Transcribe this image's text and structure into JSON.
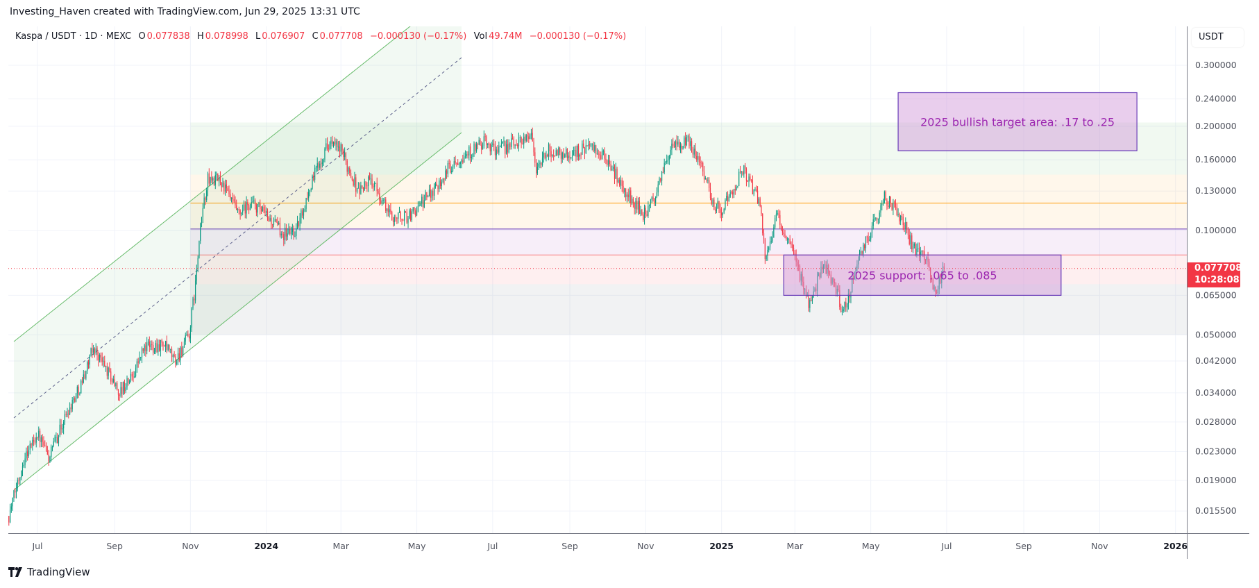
{
  "attribution": "Investing_Haven created with TradingView.com, Jun 29, 2025 13:31 UTC",
  "legend": {
    "symbol": "Kaspa / USDT · 1D · MEXC",
    "o_label": "O",
    "o": "0.077838",
    "h_label": "H",
    "h": "0.078998",
    "l_label": "L",
    "l": "0.076907",
    "c_label": "C",
    "c": "0.077708",
    "change": "−0.000130 (−0.17%)",
    "vol_label": "Vol",
    "vol": "49.74M",
    "vol_change": "−0.000130 (−0.17%)"
  },
  "price_axis": {
    "currency": "USDT"
  },
  "current_price": {
    "value": "0.077708",
    "countdown": "10:28:08"
  },
  "branding": "TradingView",
  "colors": {
    "up": "#089981",
    "down": "#f23645",
    "annotation_text": "#9c27b0",
    "annotation_border": "#673ab7"
  },
  "chart_data": {
    "type": "candlestick",
    "title": "Kaspa / USDT · 1D · MEXC",
    "scale": "log",
    "ylim": [
      0.0135,
      0.34
    ],
    "xlim": [
      "2023-06-05",
      "2026-02-20"
    ],
    "y_ticks": [
      "0.300000",
      "0.240000",
      "0.200000",
      "0.160000",
      "0.130000",
      "0.100000",
      "0.065000",
      "0.050000",
      "0.042000",
      "0.034000",
      "0.028000",
      "0.023000",
      "0.019000",
      "0.015500"
    ],
    "x_ticks": [
      {
        "label": "Jul",
        "date": "2023-07-01"
      },
      {
        "label": "Sep",
        "date": "2023-09-01"
      },
      {
        "label": "Nov",
        "date": "2023-11-01"
      },
      {
        "label": "2024",
        "date": "2024-01-01",
        "year": true
      },
      {
        "label": "Mar",
        "date": "2024-03-01"
      },
      {
        "label": "May",
        "date": "2024-05-01"
      },
      {
        "label": "Jul",
        "date": "2024-07-01"
      },
      {
        "label": "Sep",
        "date": "2024-09-01"
      },
      {
        "label": "Nov",
        "date": "2024-11-01"
      },
      {
        "label": "2025",
        "date": "2025-01-01",
        "year": true
      },
      {
        "label": "Mar",
        "date": "2025-03-01"
      },
      {
        "label": "May",
        "date": "2025-05-01"
      },
      {
        "label": "Jul",
        "date": "2025-07-01"
      },
      {
        "label": "Sep",
        "date": "2025-09-01"
      },
      {
        "label": "Nov",
        "date": "2025-11-01"
      },
      {
        "label": "2026",
        "date": "2026-01-01",
        "year": true
      }
    ],
    "key_closes": [
      [
        "2023-06-08",
        0.015
      ],
      [
        "2023-06-20",
        0.022
      ],
      [
        "2023-07-01",
        0.026
      ],
      [
        "2023-07-10",
        0.022
      ],
      [
        "2023-07-25",
        0.03
      ],
      [
        "2023-08-05",
        0.036
      ],
      [
        "2023-08-15",
        0.046
      ],
      [
        "2023-08-25",
        0.04
      ],
      [
        "2023-09-05",
        0.034
      ],
      [
        "2023-09-15",
        0.038
      ],
      [
        "2023-09-25",
        0.046
      ],
      [
        "2023-10-10",
        0.047
      ],
      [
        "2023-10-20",
        0.042
      ],
      [
        "2023-10-31",
        0.05
      ],
      [
        "2023-11-05",
        0.07
      ],
      [
        "2023-11-10",
        0.11
      ],
      [
        "2023-11-15",
        0.14
      ],
      [
        "2023-11-25",
        0.14
      ],
      [
        "2023-12-10",
        0.11
      ],
      [
        "2023-12-20",
        0.12
      ],
      [
        "2024-01-01",
        0.11
      ],
      [
        "2024-01-15",
        0.098
      ],
      [
        "2024-01-25",
        0.1
      ],
      [
        "2024-02-10",
        0.15
      ],
      [
        "2024-02-20",
        0.18
      ],
      [
        "2024-03-01",
        0.17
      ],
      [
        "2024-03-15",
        0.13
      ],
      [
        "2024-03-25",
        0.14
      ],
      [
        "2024-04-10",
        0.11
      ],
      [
        "2024-04-25",
        0.11
      ],
      [
        "2024-05-05",
        0.12
      ],
      [
        "2024-05-20",
        0.14
      ],
      [
        "2024-06-01",
        0.16
      ],
      [
        "2024-06-15",
        0.17
      ],
      [
        "2024-06-25",
        0.18
      ],
      [
        "2024-07-05",
        0.17
      ],
      [
        "2024-07-20",
        0.18
      ],
      [
        "2024-08-01",
        0.19
      ],
      [
        "2024-08-05",
        0.15
      ],
      [
        "2024-08-15",
        0.17
      ],
      [
        "2024-09-01",
        0.165
      ],
      [
        "2024-09-15",
        0.175
      ],
      [
        "2024-10-01",
        0.16
      ],
      [
        "2024-10-15",
        0.13
      ],
      [
        "2024-11-01",
        0.11
      ],
      [
        "2024-11-10",
        0.13
      ],
      [
        "2024-11-20",
        0.17
      ],
      [
        "2024-12-05",
        0.18
      ],
      [
        "2024-12-15",
        0.16
      ],
      [
        "2024-12-25",
        0.12
      ],
      [
        "2025-01-01",
        0.115
      ],
      [
        "2025-01-10",
        0.13
      ],
      [
        "2025-01-18",
        0.15
      ],
      [
        "2025-02-01",
        0.12
      ],
      [
        "2025-02-05",
        0.085
      ],
      [
        "2025-02-15",
        0.11
      ],
      [
        "2025-02-25",
        0.09
      ],
      [
        "2025-03-05",
        0.075
      ],
      [
        "2025-03-12",
        0.062
      ],
      [
        "2025-03-25",
        0.08
      ],
      [
        "2025-04-05",
        0.065
      ],
      [
        "2025-04-08",
        0.056
      ],
      [
        "2025-04-20",
        0.08
      ],
      [
        "2025-05-01",
        0.1
      ],
      [
        "2025-05-12",
        0.125
      ],
      [
        "2025-05-25",
        0.11
      ],
      [
        "2025-06-05",
        0.088
      ],
      [
        "2025-06-15",
        0.085
      ],
      [
        "2025-06-22",
        0.065
      ],
      [
        "2025-06-29",
        0.0777
      ]
    ],
    "zones": [
      {
        "name": "green-zone",
        "from": 0.145,
        "to": 0.205,
        "start": "2023-11-01",
        "color": "rgba(76,175,80,0.08)"
      },
      {
        "name": "orange-zone",
        "from": 0.101,
        "to": 0.145,
        "start": "2023-11-01",
        "color": "rgba(255,152,0,0.08)"
      },
      {
        "name": "lavender-zone",
        "from": 0.085,
        "to": 0.101,
        "start": "2023-11-01",
        "color": "rgba(156,39,176,0.08)"
      },
      {
        "name": "pink-zone",
        "from": 0.07,
        "to": 0.085,
        "start": "2023-11-01",
        "color": "rgba(242,54,69,0.08)"
      },
      {
        "name": "gray-zone",
        "from": 0.05,
        "to": 0.07,
        "start": "2023-11-01",
        "color": "rgba(120,123,134,0.1)"
      }
    ],
    "levels": [
      {
        "name": "orange-level-line",
        "price": 0.12,
        "color": "#ff9800"
      },
      {
        "name": "purple-level-line",
        "price": 0.101,
        "color": "#673ab7"
      },
      {
        "name": "red-level-line",
        "price": 0.085,
        "color": "#f77c80"
      }
    ],
    "annotations": [
      {
        "name": "bullish-target-box",
        "text": "2025 bullish target area: .17 to .25",
        "from": 0.17,
        "to": 0.25,
        "start": "2025-05-23",
        "end": "2025-12-01"
      },
      {
        "name": "support-box",
        "text": "2025 support: .065 to .085",
        "from": 0.065,
        "to": 0.085,
        "start": "2025-02-20",
        "end": "2025-10-01"
      }
    ]
  }
}
